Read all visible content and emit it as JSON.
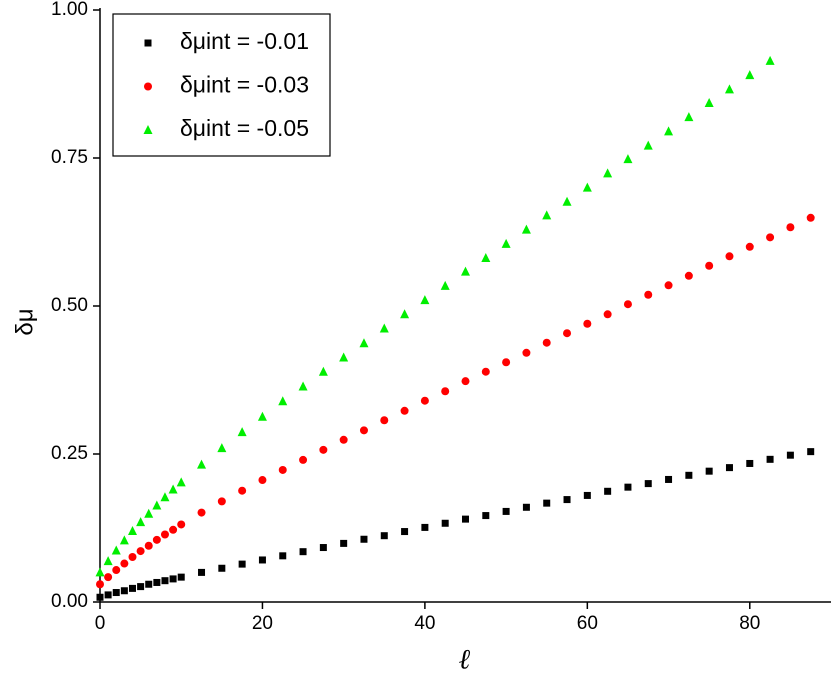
{
  "chart_data": {
    "type": "scatter",
    "xlabel": "ℓ",
    "ylabel": "δμ",
    "xlim": [
      0,
      90
    ],
    "ylim": [
      0,
      1
    ],
    "xticks": [
      0,
      20,
      40,
      60,
      80
    ],
    "yticks": [
      {
        "value": 0,
        "label": "0.00"
      },
      {
        "value": 0.25,
        "label": "0.25"
      },
      {
        "value": 0.5,
        "label": "0.50"
      },
      {
        "value": 0.75,
        "label": "0.75"
      },
      {
        "value": 1,
        "label": "1.00"
      }
    ],
    "legend": "top-left",
    "series": [
      {
        "name": "δμint = -0.01",
        "color": "#000000",
        "marker": "square",
        "x": [
          0,
          1,
          2,
          3,
          4,
          5,
          6,
          7,
          8,
          9,
          10,
          12.5,
          15,
          17.5,
          20,
          22.5,
          25,
          27.5,
          30,
          32.5,
          35,
          37.5,
          40,
          42.5,
          45,
          47.5,
          50,
          52.5,
          55,
          57.5,
          60,
          62.5,
          65,
          67.5,
          70,
          72.5,
          75,
          77.5,
          80,
          82.5,
          85,
          87.5
        ],
        "values": [
          0.008,
          0.012,
          0.016,
          0.019,
          0.023,
          0.026,
          0.03,
          0.033,
          0.036,
          0.039,
          0.042,
          0.05,
          0.057,
          0.064,
          0.071,
          0.078,
          0.085,
          0.092,
          0.099,
          0.106,
          0.112,
          0.119,
          0.126,
          0.133,
          0.14,
          0.146,
          0.153,
          0.16,
          0.167,
          0.173,
          0.18,
          0.187,
          0.194,
          0.2,
          0.207,
          0.214,
          0.221,
          0.227,
          0.234,
          0.241,
          0.248,
          0.254
        ]
      },
      {
        "name": "δμint = -0.03",
        "color": "#ff0000",
        "marker": "circle",
        "x": [
          0,
          1,
          2,
          3,
          4,
          5,
          6,
          7,
          8,
          9,
          10,
          12.5,
          15,
          17.5,
          20,
          22.5,
          25,
          27.5,
          30,
          32.5,
          35,
          37.5,
          40,
          42.5,
          45,
          47.5,
          50,
          52.5,
          55,
          57.5,
          60,
          62.5,
          65,
          67.5,
          70,
          72.5,
          75,
          77.5,
          80,
          82.5,
          85,
          87.5
        ],
        "values": [
          0.03,
          0.042,
          0.054,
          0.065,
          0.076,
          0.086,
          0.095,
          0.105,
          0.114,
          0.122,
          0.131,
          0.151,
          0.17,
          0.188,
          0.206,
          0.223,
          0.24,
          0.257,
          0.274,
          0.29,
          0.307,
          0.323,
          0.34,
          0.356,
          0.373,
          0.389,
          0.405,
          0.421,
          0.438,
          0.454,
          0.47,
          0.486,
          0.503,
          0.519,
          0.535,
          0.551,
          0.568,
          0.584,
          0.6,
          0.616,
          0.633,
          0.649
        ]
      },
      {
        "name": "δμint = -0.05",
        "color": "#00ee00",
        "marker": "triangle",
        "x": [
          0,
          1,
          2,
          3,
          4,
          5,
          6,
          7,
          8,
          9,
          10,
          12.5,
          15,
          17.5,
          20,
          22.5,
          25,
          27.5,
          30,
          32.5,
          35,
          37.5,
          40,
          42.5,
          45,
          47.5,
          50,
          52.5,
          55,
          57.5,
          60,
          62.5,
          65,
          67.5,
          70,
          72.5,
          75,
          77.5,
          80,
          82.5
        ],
        "values": [
          0.05,
          0.069,
          0.087,
          0.104,
          0.12,
          0.135,
          0.149,
          0.163,
          0.177,
          0.19,
          0.202,
          0.232,
          0.26,
          0.287,
          0.313,
          0.339,
          0.364,
          0.389,
          0.413,
          0.437,
          0.462,
          0.486,
          0.51,
          0.534,
          0.558,
          0.581,
          0.605,
          0.629,
          0.653,
          0.676,
          0.7,
          0.724,
          0.748,
          0.771,
          0.795,
          0.819,
          0.843,
          0.866,
          0.89,
          0.914
        ]
      }
    ]
  }
}
